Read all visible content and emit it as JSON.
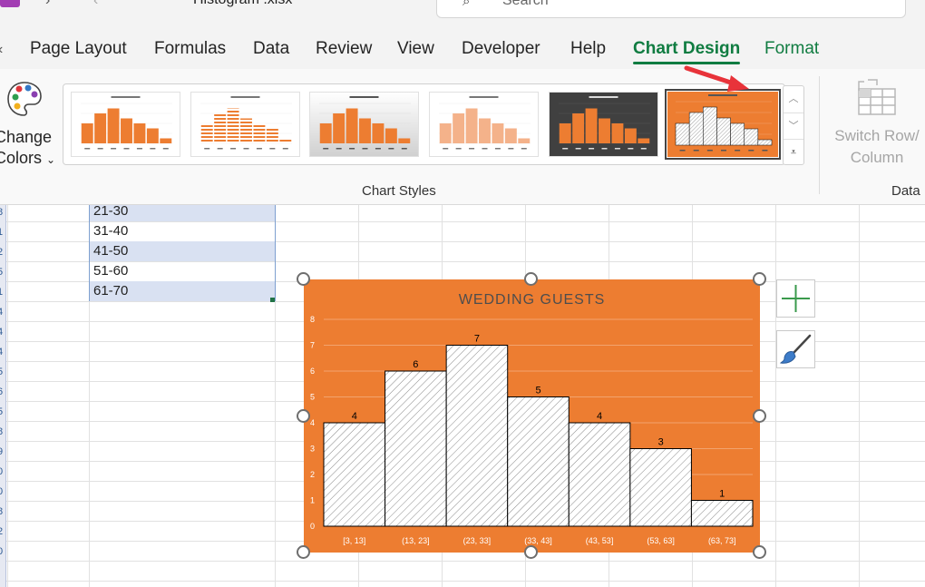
{
  "window": {
    "doc_title": "Histogram .xlsx",
    "search_placeholder": "Search"
  },
  "tabs": [
    "Page Layout",
    "Formulas",
    "Data",
    "Review",
    "View",
    "Developer",
    "Help",
    "Chart Design",
    "Format"
  ],
  "active_tab": "Chart Design",
  "ribbon": {
    "change_colors_line1": "Change",
    "change_colors_line2": "Colors",
    "chart_styles_label": "Chart Styles",
    "switch_row_line1": "Switch Row/",
    "switch_row_line2": "Column",
    "data_group_label": "Data",
    "style_thumbnails": 6,
    "selected_style_index": 5
  },
  "cells": [
    "21-30",
    "31-40",
    "41-50",
    "51-60",
    "61-70"
  ],
  "row_numbers": [
    "8",
    "1",
    "2",
    "5",
    "1",
    "4",
    "4",
    "4",
    "5",
    "6",
    "5",
    "8",
    "9",
    "0",
    "0",
    "8",
    "2",
    "0"
  ],
  "colors": {
    "accent": "#107c41",
    "chart_bg": "#ed7d31",
    "selection": "#d9e1f2"
  },
  "chart_data": {
    "type": "bar",
    "title": "WEDDING GUESTS",
    "categories": [
      "[3, 13]",
      "(13, 23]",
      "(23, 33]",
      "(33, 43]",
      "(43, 53]",
      "(53, 63]",
      "(63, 73]"
    ],
    "values": [
      4,
      6,
      7,
      5,
      4,
      3,
      1
    ],
    "ylim": [
      0,
      8
    ],
    "yticks": [
      0,
      1,
      2,
      3,
      4,
      5,
      6,
      7,
      8
    ],
    "grid": true,
    "data_labels": true,
    "fill": "diagonal-hatch"
  },
  "side_buttons": [
    "chart-elements",
    "chart-styles"
  ]
}
